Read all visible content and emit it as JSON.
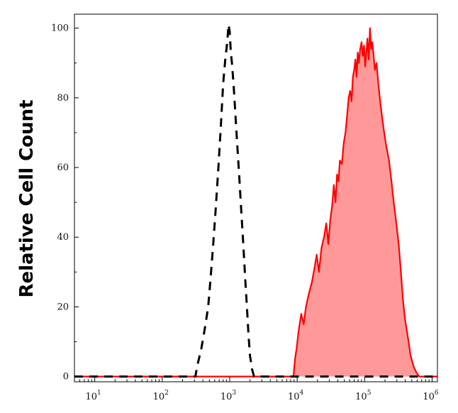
{
  "chart_data": {
    "type": "area",
    "title": "",
    "xlabel": "",
    "ylabel": "Relative Cell Count",
    "x_scale": "log",
    "xlim": [
      5,
      1200000
    ],
    "ylim": [
      -1.5,
      104
    ],
    "x_ticks": [
      {
        "base": "10",
        "exp": "1",
        "value": 10
      },
      {
        "base": "10",
        "exp": "2",
        "value": 100
      },
      {
        "base": "10",
        "exp": "3",
        "value": 1000
      },
      {
        "base": "10",
        "exp": "4",
        "value": 10000
      },
      {
        "base": "10",
        "exp": "5",
        "value": 100000
      },
      {
        "base": "10",
        "exp": "6",
        "value": 1000000
      }
    ],
    "y_ticks": [
      {
        "label": "0",
        "value": 0
      },
      {
        "label": "20",
        "value": 20
      },
      {
        "label": "40",
        "value": 40
      },
      {
        "label": "60",
        "value": 60
      },
      {
        "label": "80",
        "value": 80
      },
      {
        "label": "100",
        "value": 100
      }
    ],
    "grid": false,
    "legend": "none",
    "series": [
      {
        "style": "dashed",
        "color": "#000000",
        "points": [
          [
            5,
            0
          ],
          [
            310,
            0
          ],
          [
            330,
            3
          ],
          [
            380,
            8
          ],
          [
            430,
            14
          ],
          [
            480,
            20
          ],
          [
            520,
            28
          ],
          [
            570,
            38
          ],
          [
            620,
            48
          ],
          [
            680,
            60
          ],
          [
            740,
            72
          ],
          [
            800,
            84
          ],
          [
            860,
            91
          ],
          [
            920,
            96
          ],
          [
            960,
            101
          ],
          [
            1000,
            99
          ],
          [
            1040,
            93
          ],
          [
            1080,
            90
          ],
          [
            1140,
            84
          ],
          [
            1200,
            77
          ],
          [
            1280,
            68
          ],
          [
            1380,
            58
          ],
          [
            1480,
            48
          ],
          [
            1590,
            38
          ],
          [
            1700,
            28
          ],
          [
            1800,
            20
          ],
          [
            1900,
            12
          ],
          [
            2000,
            6
          ],
          [
            2150,
            2
          ],
          [
            2300,
            0
          ],
          [
            1200000,
            0
          ]
        ]
      },
      {
        "style": "solid-filled",
        "color": "#ff0000",
        "fill": "#ff9999",
        "points": [
          [
            5,
            0
          ],
          [
            8800,
            0
          ],
          [
            9300,
            5
          ],
          [
            9800,
            8
          ],
          [
            10500,
            13
          ],
          [
            11500,
            18
          ],
          [
            12500,
            15
          ],
          [
            13500,
            20
          ],
          [
            15000,
            24
          ],
          [
            16500,
            27
          ],
          [
            18000,
            31
          ],
          [
            19500,
            35
          ],
          [
            21000,
            30
          ],
          [
            23000,
            37
          ],
          [
            25000,
            40
          ],
          [
            27000,
            44
          ],
          [
            29000,
            38
          ],
          [
            31000,
            45
          ],
          [
            33000,
            49
          ],
          [
            35000,
            55
          ],
          [
            37000,
            50
          ],
          [
            39000,
            58
          ],
          [
            41000,
            56
          ],
          [
            43000,
            62
          ],
          [
            46000,
            61
          ],
          [
            49000,
            67
          ],
          [
            52000,
            70
          ],
          [
            55000,
            75
          ],
          [
            58000,
            80
          ],
          [
            61000,
            82
          ],
          [
            64000,
            79
          ],
          [
            67000,
            86
          ],
          [
            70000,
            88
          ],
          [
            73000,
            91
          ],
          [
            76000,
            86
          ],
          [
            79000,
            93
          ],
          [
            82000,
            90
          ],
          [
            86000,
            94
          ],
          [
            90000,
            96
          ],
          [
            94000,
            92
          ],
          [
            98000,
            95
          ],
          [
            102000,
            89
          ],
          [
            106000,
            93
          ],
          [
            110000,
            97
          ],
          [
            115000,
            91
          ],
          [
            120000,
            100
          ],
          [
            125000,
            94
          ],
          [
            130000,
            96
          ],
          [
            136000,
            92
          ],
          [
            142000,
            88
          ],
          [
            150000,
            90
          ],
          [
            160000,
            84
          ],
          [
            170000,
            79
          ],
          [
            180000,
            75
          ],
          [
            195000,
            70
          ],
          [
            210000,
            66
          ],
          [
            230000,
            62
          ],
          [
            250000,
            56
          ],
          [
            270000,
            50
          ],
          [
            295000,
            44
          ],
          [
            320000,
            38
          ],
          [
            345000,
            30
          ],
          [
            370000,
            22
          ],
          [
            400000,
            16
          ],
          [
            440000,
            11
          ],
          [
            480000,
            6
          ],
          [
            530000,
            3
          ],
          [
            590000,
            1
          ],
          [
            650000,
            0
          ],
          [
            1200000,
            0
          ]
        ]
      }
    ]
  }
}
